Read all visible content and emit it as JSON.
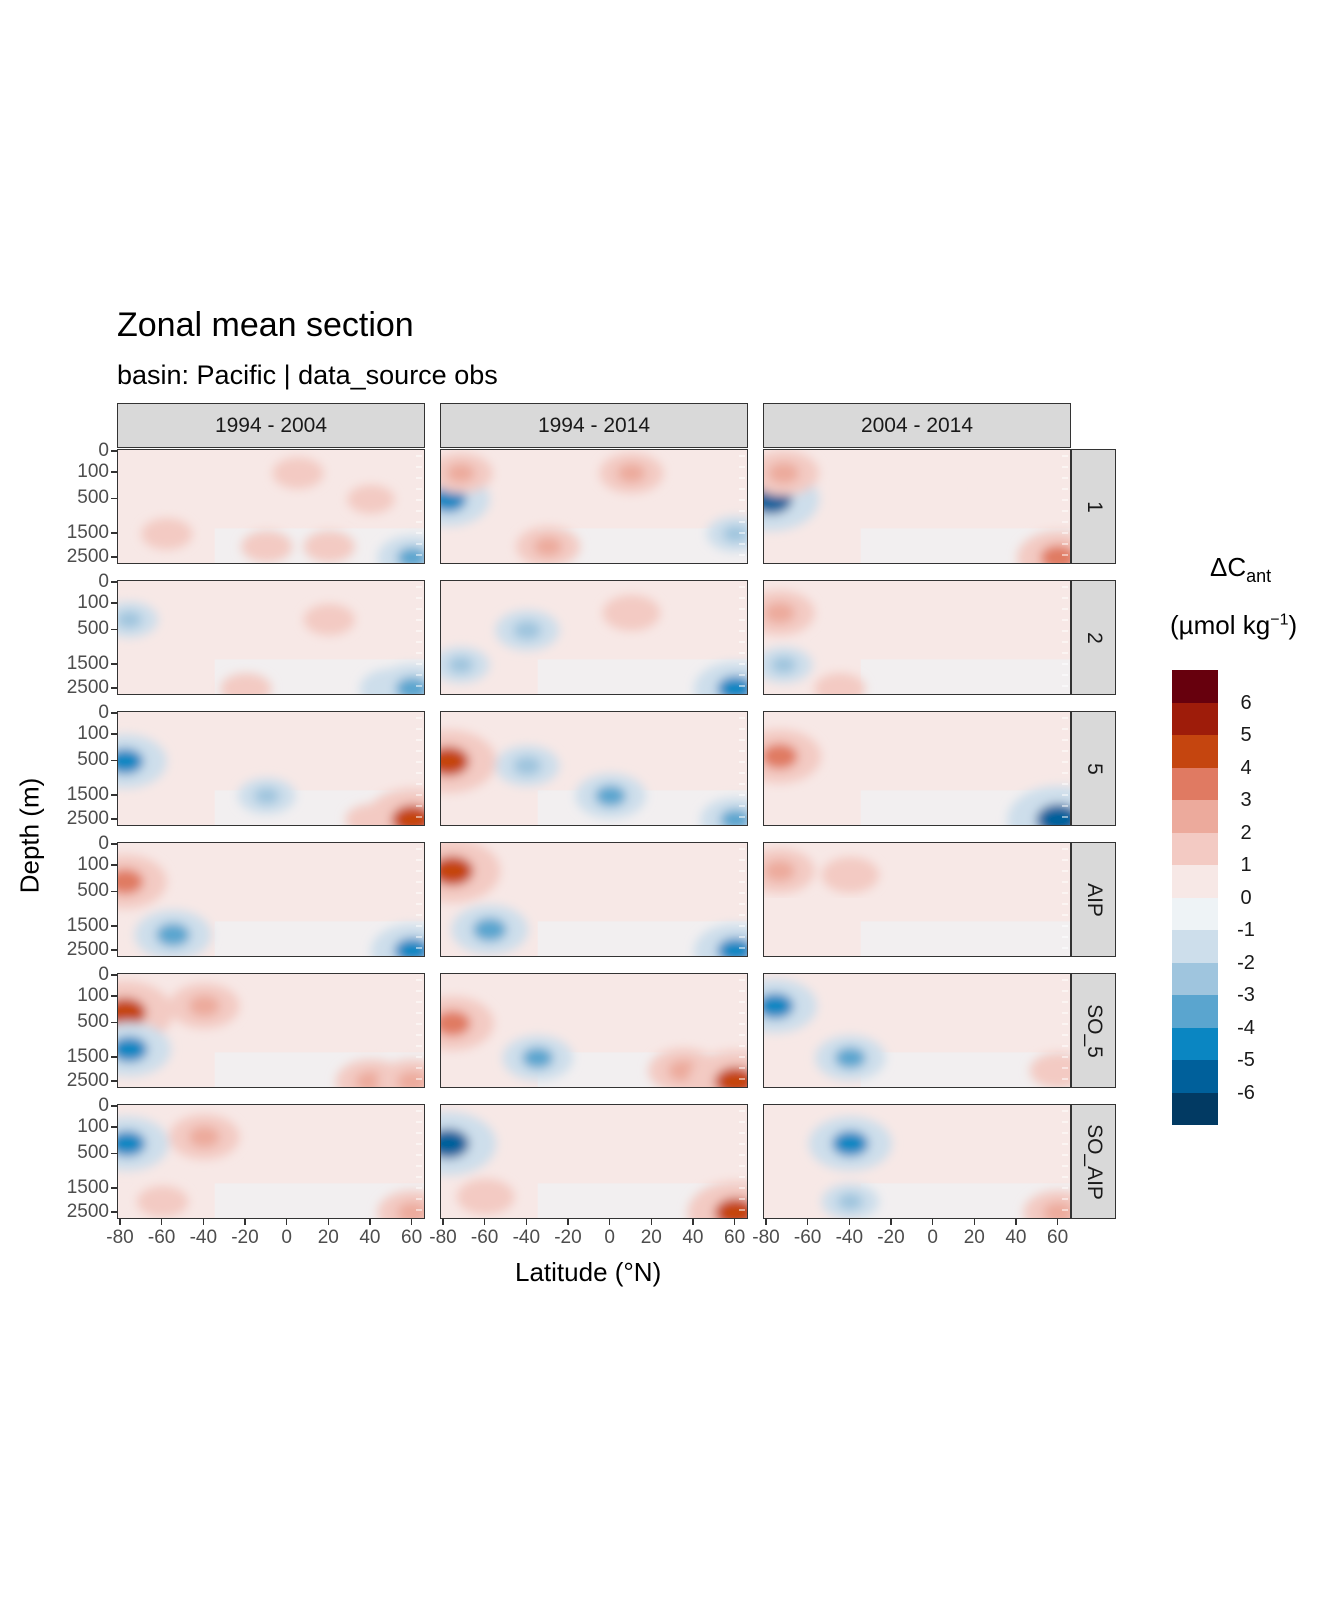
{
  "title": "Zonal mean section",
  "subtitle": "basin: Pacific | data_source obs",
  "y_axis_label": "Depth (m)",
  "x_axis_label": "Latitude (°N)",
  "legend": {
    "title_main": "ΔC",
    "title_sub": "ant",
    "units": "(µmol kg",
    "units_sup": "−1",
    "units_close": ")",
    "colors": [
      "#67000d",
      "#9e1c0a",
      "#c5450f",
      "#e07a62",
      "#ecaa9c",
      "#f3cac3",
      "#f7e8e6",
      "#eef3f6",
      "#cddeeb",
      "#9fc5de",
      "#5aa5cf",
      "#0a86c2",
      "#00609b",
      "#023a63"
    ],
    "labels": [
      "6",
      "5",
      "4",
      "3",
      "2",
      "1",
      "0",
      "-1",
      "-2",
      "-3",
      "-4",
      "-5",
      "-6"
    ]
  },
  "column_strips": [
    "1994 - 2004",
    "1994 - 2014",
    "2004 - 2014"
  ],
  "row_strips": [
    "1",
    "2",
    "5",
    "AIP",
    "SO_5",
    "SO_AIP"
  ],
  "y_tick_labels": [
    "0",
    "100",
    "500",
    "1500",
    "2500"
  ],
  "x_tick_labels": [
    "-80",
    "-60",
    "-40",
    "-20",
    "0",
    "20",
    "40",
    "60"
  ],
  "chart_data": {
    "type": "heatmap",
    "title": "Zonal mean section",
    "subtitle": "basin: Pacific | data_source obs",
    "xlabel": "Latitude (°N)",
    "ylabel": "Depth (m)",
    "x_range": [
      -80,
      65
    ],
    "y_ticks": [
      0,
      100,
      500,
      1500,
      2500
    ],
    "y_reversed": true,
    "facet_columns": [
      "1994 - 2004",
      "1994 - 2014",
      "2004 - 2014"
    ],
    "facet_rows": [
      "1",
      "2",
      "5",
      "AIP",
      "SO_5",
      "SO_AIP"
    ],
    "color_scale": {
      "variable": "ΔC_ant (µmol kg−1)",
      "breaks": [
        6,
        5,
        4,
        3,
        2,
        1,
        0,
        -1,
        -2,
        -3,
        -4,
        -5,
        -6
      ],
      "palette": "diverging red-blue"
    },
    "panels": [
      {
        "column": "1994 - 2004",
        "row": "1",
        "features": [
          {
            "lat": -58,
            "depth": 1500,
            "v": 1.5
          },
          {
            "lat": -10,
            "depth": 2000,
            "v": 1.5
          },
          {
            "lat": 20,
            "depth": 2000,
            "v": 1.5
          },
          {
            "lat": 5,
            "depth": 100,
            "v": 1.5
          },
          {
            "lat": 40,
            "depth": 500,
            "v": 1.2
          },
          {
            "lat": 60,
            "depth": 2500,
            "v": -3
          }
        ]
      },
      {
        "column": "1994 - 2004",
        "row": "2",
        "features": [
          {
            "lat": -76,
            "depth": 300,
            "v": -2
          },
          {
            "lat": -20,
            "depth": 2500,
            "v": 1.5
          },
          {
            "lat": 20,
            "depth": 300,
            "v": 1.5
          },
          {
            "lat": 50,
            "depth": 2500,
            "v": -2.5
          },
          {
            "lat": 60,
            "depth": 2500,
            "v": -3.5
          }
        ]
      },
      {
        "column": "1994 - 2004",
        "row": "5",
        "features": [
          {
            "lat": -78,
            "depth": 500,
            "v": -4
          },
          {
            "lat": -10,
            "depth": 1500,
            "v": -2
          },
          {
            "lat": 40,
            "depth": 2500,
            "v": 1.5
          },
          {
            "lat": 60,
            "depth": 2500,
            "v": 5
          }
        ]
      },
      {
        "column": "1994 - 2004",
        "row": "AIP",
        "features": [
          {
            "lat": -78,
            "depth": 300,
            "v": 4
          },
          {
            "lat": -55,
            "depth": 1800,
            "v": -3.5
          },
          {
            "lat": 60,
            "depth": 2500,
            "v": -4
          }
        ]
      },
      {
        "column": "1994 - 2004",
        "row": "SO_5",
        "features": [
          {
            "lat": -78,
            "depth": 300,
            "v": 5
          },
          {
            "lat": -76,
            "depth": 1200,
            "v": -4
          },
          {
            "lat": -40,
            "depth": 200,
            "v": 3
          },
          {
            "lat": 40,
            "depth": 2500,
            "v": 3
          },
          {
            "lat": 60,
            "depth": 2500,
            "v": 3
          }
        ]
      },
      {
        "column": "1994 - 2004",
        "row": "SO_AIP",
        "features": [
          {
            "lat": -77,
            "depth": 300,
            "v": -4
          },
          {
            "lat": -40,
            "depth": 200,
            "v": 3
          },
          {
            "lat": -60,
            "depth": 2000,
            "v": 1.5
          },
          {
            "lat": 60,
            "depth": 2500,
            "v": 3
          }
        ]
      },
      {
        "column": "1994 - 2014",
        "row": "1",
        "features": [
          {
            "lat": -78,
            "depth": 500,
            "v": -4
          },
          {
            "lat": -72,
            "depth": 100,
            "v": 2.5
          },
          {
            "lat": -30,
            "depth": 2000,
            "v": 2.5
          },
          {
            "lat": 10,
            "depth": 100,
            "v": 2.5
          },
          {
            "lat": 60,
            "depth": 1500,
            "v": -2
          }
        ]
      },
      {
        "column": "1994 - 2014",
        "row": "2",
        "features": [
          {
            "lat": -72,
            "depth": 1500,
            "v": -2
          },
          {
            "lat": -40,
            "depth": 500,
            "v": -2.5
          },
          {
            "lat": 10,
            "depth": 200,
            "v": 2
          },
          {
            "lat": 60,
            "depth": 2500,
            "v": -4
          }
        ]
      },
      {
        "column": "1994 - 2014",
        "row": "5",
        "features": [
          {
            "lat": -78,
            "depth": 500,
            "v": 5
          },
          {
            "lat": -40,
            "depth": 600,
            "v": -2.5
          },
          {
            "lat": 0,
            "depth": 1500,
            "v": -3
          },
          {
            "lat": 60,
            "depth": 2500,
            "v": -3
          }
        ]
      },
      {
        "column": "1994 - 2014",
        "row": "AIP",
        "features": [
          {
            "lat": -76,
            "depth": 150,
            "v": 5
          },
          {
            "lat": -58,
            "depth": 1600,
            "v": -3.5
          },
          {
            "lat": 60,
            "depth": 2500,
            "v": -4
          }
        ]
      },
      {
        "column": "1994 - 2014",
        "row": "SO_5",
        "features": [
          {
            "lat": -76,
            "depth": 500,
            "v": 4
          },
          {
            "lat": -35,
            "depth": 1500,
            "v": -3
          },
          {
            "lat": 35,
            "depth": 2000,
            "v": 3
          },
          {
            "lat": 60,
            "depth": 2500,
            "v": 5
          }
        ]
      },
      {
        "column": "1994 - 2014",
        "row": "SO_AIP",
        "features": [
          {
            "lat": -78,
            "depth": 300,
            "v": -5
          },
          {
            "lat": -60,
            "depth": 1800,
            "v": 2
          },
          {
            "lat": 60,
            "depth": 2500,
            "v": 5
          }
        ]
      },
      {
        "column": "2004 - 2014",
        "row": "1",
        "features": [
          {
            "lat": -78,
            "depth": 500,
            "v": -5
          },
          {
            "lat": -72,
            "depth": 100,
            "v": 3
          },
          {
            "lat": 0,
            "depth": 300,
            "v": 1
          },
          {
            "lat": 60,
            "depth": 2500,
            "v": 4
          }
        ]
      },
      {
        "column": "2004 - 2014",
        "row": "2",
        "features": [
          {
            "lat": -74,
            "depth": 200,
            "v": 3
          },
          {
            "lat": -72,
            "depth": 1500,
            "v": -2
          },
          {
            "lat": -45,
            "depth": 2500,
            "v": 1.5
          }
        ]
      },
      {
        "column": "2004 - 2014",
        "row": "5",
        "features": [
          {
            "lat": -74,
            "depth": 400,
            "v": 4
          },
          {
            "lat": 60,
            "depth": 2500,
            "v": -5.5
          }
        ]
      },
      {
        "column": "2004 - 2014",
        "row": "AIP",
        "features": [
          {
            "lat": -74,
            "depth": 150,
            "v": 3
          },
          {
            "lat": -40,
            "depth": 200,
            "v": 2
          }
        ]
      },
      {
        "column": "2004 - 2014",
        "row": "SO_5",
        "features": [
          {
            "lat": -76,
            "depth": 200,
            "v": -4
          },
          {
            "lat": -40,
            "depth": 1500,
            "v": -3
          },
          {
            "lat": 60,
            "depth": 2000,
            "v": 2
          }
        ]
      },
      {
        "column": "2004 - 2014",
        "row": "SO_AIP",
        "features": [
          {
            "lat": -40,
            "depth": 300,
            "v": -4
          },
          {
            "lat": -40,
            "depth": 2000,
            "v": -2
          },
          {
            "lat": 60,
            "depth": 2500,
            "v": 3
          }
        ]
      }
    ]
  }
}
